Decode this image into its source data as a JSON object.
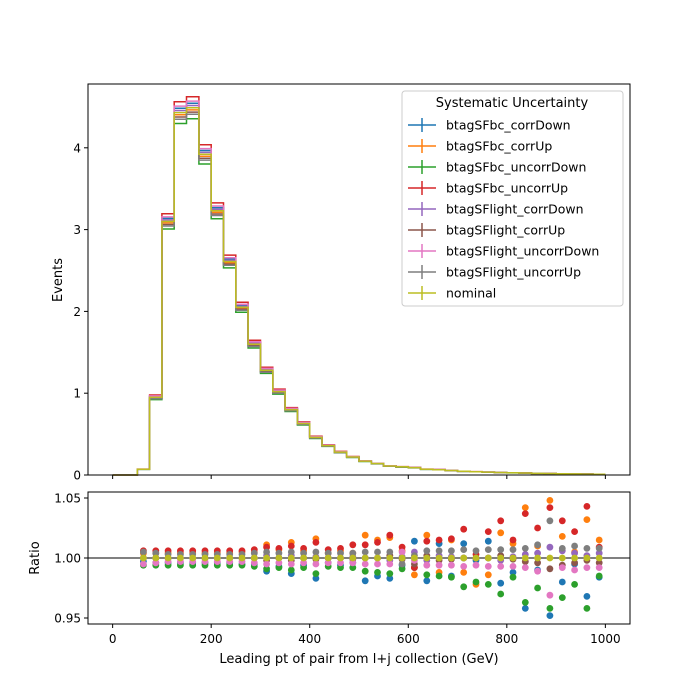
{
  "chart_data": [
    {
      "type": "step",
      "ylabel": "Events",
      "xlim": [
        -50,
        1050
      ],
      "ylim": [
        0,
        4.78
      ],
      "y_ticks": [
        0,
        1,
        2,
        3,
        4
      ],
      "y_tick_labels": [
        "0",
        "1",
        "2",
        "3",
        "4"
      ],
      "grid": false,
      "legend": {
        "title": "Systematic Uncertainty",
        "placement": "top-right",
        "entries": [
          "btagSFbc_corrDown",
          "btagSFbc_corrUp",
          "btagSFbc_uncorrDown",
          "btagSFbc_uncorrUp",
          "btagSFlight_corrDown",
          "btagSFlight_corrUp",
          "btagSFlight_uncorrDown",
          "btagSFlight_uncorrUp",
          "nominal"
        ],
        "colors": [
          "#1f77b4",
          "#ff7f0e",
          "#2ca02c",
          "#d62728",
          "#9467bd",
          "#8c564b",
          "#e377c2",
          "#7f7f7f",
          "#bcbd22"
        ]
      },
      "bin_width": 25,
      "bin_edges_start": 0,
      "nominal": [
        0.0,
        0.0,
        0.07,
        0.95,
        3.1,
        4.43,
        4.49,
        3.92,
        3.23,
        2.61,
        2.05,
        1.6,
        1.28,
        1.02,
        0.8,
        0.63,
        0.46,
        0.36,
        0.28,
        0.22,
        0.17,
        0.14,
        0.11,
        0.1,
        0.09,
        0.07,
        0.065,
        0.055,
        0.045,
        0.04,
        0.035,
        0.03,
        0.027,
        0.024,
        0.02,
        0.018,
        0.015,
        0.013,
        0.011,
        0.01
      ]
    },
    {
      "type": "scatter",
      "xlabel": "Leading pt of pair from l+j collection (GeV)",
      "ylabel": "Ratio",
      "xlim": [
        -50,
        1050
      ],
      "ylim": [
        0.945,
        1.055
      ],
      "x_ticks": [
        0,
        200,
        400,
        600,
        800,
        1000
      ],
      "x_tick_labels": [
        "0",
        "200",
        "400",
        "600",
        "800",
        "1000"
      ],
      "y_ticks": [
        0.95,
        1.0,
        1.05
      ],
      "y_tick_labels": [
        "0.95",
        "1.00",
        "1.05"
      ],
      "reference_line": 1.0,
      "x": [
        62.5,
        87.5,
        112.5,
        137.5,
        162.5,
        187.5,
        212.5,
        237.5,
        262.5,
        287.5,
        312.5,
        337.5,
        362.5,
        387.5,
        412.5,
        437.5,
        462.5,
        487.5,
        512.5,
        537.5,
        562.5,
        587.5,
        612.5,
        637.5,
        662.5,
        687.5,
        712.5,
        737.5,
        762.5,
        787.5,
        812.5,
        837.5,
        862.5,
        887.5,
        912.5,
        937.5,
        962.5,
        987.5
      ],
      "series": [
        {
          "color": "#1f77b4",
          "values": [
            0.997,
            0.996,
            0.996,
            0.996,
            0.996,
            0.996,
            0.996,
            0.996,
            0.995,
            0.995,
            0.989,
            0.993,
            0.987,
            0.994,
            0.983,
            0.996,
            0.994,
            0.996,
            0.981,
            0.985,
            0.983,
            0.994,
            1.014,
            0.981,
            1.012,
            0.985,
            1.012,
            0.998,
            1.014,
            0.979,
            0.988,
            0.958,
            0.99,
            0.952,
            0.98,
            0.995,
            0.968,
            0.984
          ]
        },
        {
          "color": "#ff7f0e",
          "values": [
            1.004,
            1.004,
            1.004,
            1.004,
            1.004,
            1.004,
            1.004,
            1.004,
            1.005,
            1.005,
            1.011,
            1.007,
            1.013,
            1.006,
            1.016,
            1.004,
            1.006,
            1.004,
            1.019,
            1.015,
            1.017,
            1.006,
            0.986,
            1.019,
            0.988,
            1.015,
            0.988,
            0.978,
            0.986,
            1.021,
            1.012,
            1.042,
            1.01,
            1.048,
            1.018,
            1.005,
            1.032,
            1.015
          ]
        },
        {
          "color": "#2ca02c",
          "values": [
            0.994,
            0.994,
            0.994,
            0.994,
            0.994,
            0.994,
            0.994,
            0.994,
            0.994,
            0.993,
            0.991,
            0.992,
            0.99,
            0.992,
            0.987,
            0.993,
            0.992,
            0.992,
            0.989,
            0.988,
            0.987,
            0.991,
            0.992,
            0.986,
            0.985,
            0.984,
            0.976,
            0.98,
            0.978,
            0.97,
            0.984,
            0.963,
            0.975,
            0.958,
            0.967,
            0.978,
            0.958,
            0.985
          ]
        },
        {
          "color": "#d62728",
          "values": [
            1.006,
            1.006,
            1.006,
            1.006,
            1.006,
            1.006,
            1.006,
            1.006,
            1.006,
            1.007,
            1.009,
            1.008,
            1.01,
            1.008,
            1.013,
            1.007,
            1.008,
            1.011,
            1.011,
            1.013,
            1.019,
            1.009,
            0.992,
            1.014,
            1.015,
            1.016,
            1.024,
            1.003,
            1.022,
            1.031,
            1.015,
            1.037,
            1.025,
            1.042,
            1.031,
            1.022,
            1.043,
            1.009
          ]
        },
        {
          "color": "#9467bd",
          "values": [
            1.0,
            1.0,
            1.0,
            1.0,
            1.0,
            1.0,
            1.0,
            1.0,
            1.0,
            1.0,
            1.002,
            1.0,
            1.002,
            1.0,
            1.001,
            1.0,
            1.0,
            1.001,
            1.0,
            1.0,
            0.998,
            1.001,
            1.005,
            0.998,
            1.002,
            1.001,
            1.0,
            1.0,
            1.0,
            0.998,
            1.001,
            1.003,
            1.004,
            1.009,
            1.006,
            1.004,
            1.002,
            1.004
          ]
        },
        {
          "color": "#8c564b",
          "values": [
            1.0,
            1.0,
            1.0,
            1.0,
            1.0,
            1.0,
            1.0,
            1.0,
            1.0,
            1.0,
            0.998,
            1.0,
            0.998,
            1.0,
            0.999,
            1.0,
            1.0,
            0.999,
            1.0,
            1.0,
            1.002,
            0.999,
            0.995,
            1.002,
            0.998,
            0.999,
            1.0,
            1.0,
            1.0,
            1.002,
            0.999,
            0.997,
            0.996,
            0.991,
            0.994,
            0.996,
            0.998,
            0.996
          ]
        },
        {
          "color": "#e377c2",
          "values": [
            0.995,
            0.996,
            0.997,
            0.997,
            0.997,
            0.997,
            0.997,
            0.997,
            0.997,
            0.996,
            0.995,
            0.996,
            0.995,
            0.996,
            0.995,
            0.996,
            0.996,
            0.996,
            0.995,
            0.995,
            0.995,
            1.005,
            0.998,
            0.994,
            0.994,
            0.994,
            0.993,
            0.994,
            0.993,
            0.993,
            0.993,
            0.992,
            0.989,
            0.969,
            0.992,
            0.99,
            0.992,
            0.992
          ]
        },
        {
          "color": "#7f7f7f",
          "values": [
            1.005,
            1.004,
            1.003,
            1.003,
            1.003,
            1.003,
            1.003,
            1.003,
            1.003,
            1.004,
            1.005,
            1.004,
            1.005,
            1.004,
            1.005,
            1.004,
            1.004,
            1.004,
            1.005,
            1.005,
            1.005,
            0.995,
            1.002,
            1.006,
            1.006,
            1.006,
            1.007,
            1.006,
            1.007,
            1.007,
            1.007,
            1.008,
            1.011,
            1.031,
            1.008,
            1.01,
            1.008,
            1.008
          ]
        },
        {
          "color": "#bcbd22",
          "values": [
            1.0,
            1.0,
            1.0,
            1.0,
            1.0,
            1.0,
            1.0,
            1.0,
            1.0,
            1.0,
            1.0,
            1.0,
            1.0,
            1.0,
            1.0,
            1.0,
            1.0,
            1.0,
            1.0,
            1.0,
            1.0,
            1.0,
            1.0,
            1.0,
            1.0,
            1.0,
            1.0,
            1.0,
            1.0,
            1.0,
            1.0,
            1.0,
            1.0,
            1.0,
            1.0,
            1.0,
            1.0,
            1.0
          ]
        }
      ]
    }
  ]
}
